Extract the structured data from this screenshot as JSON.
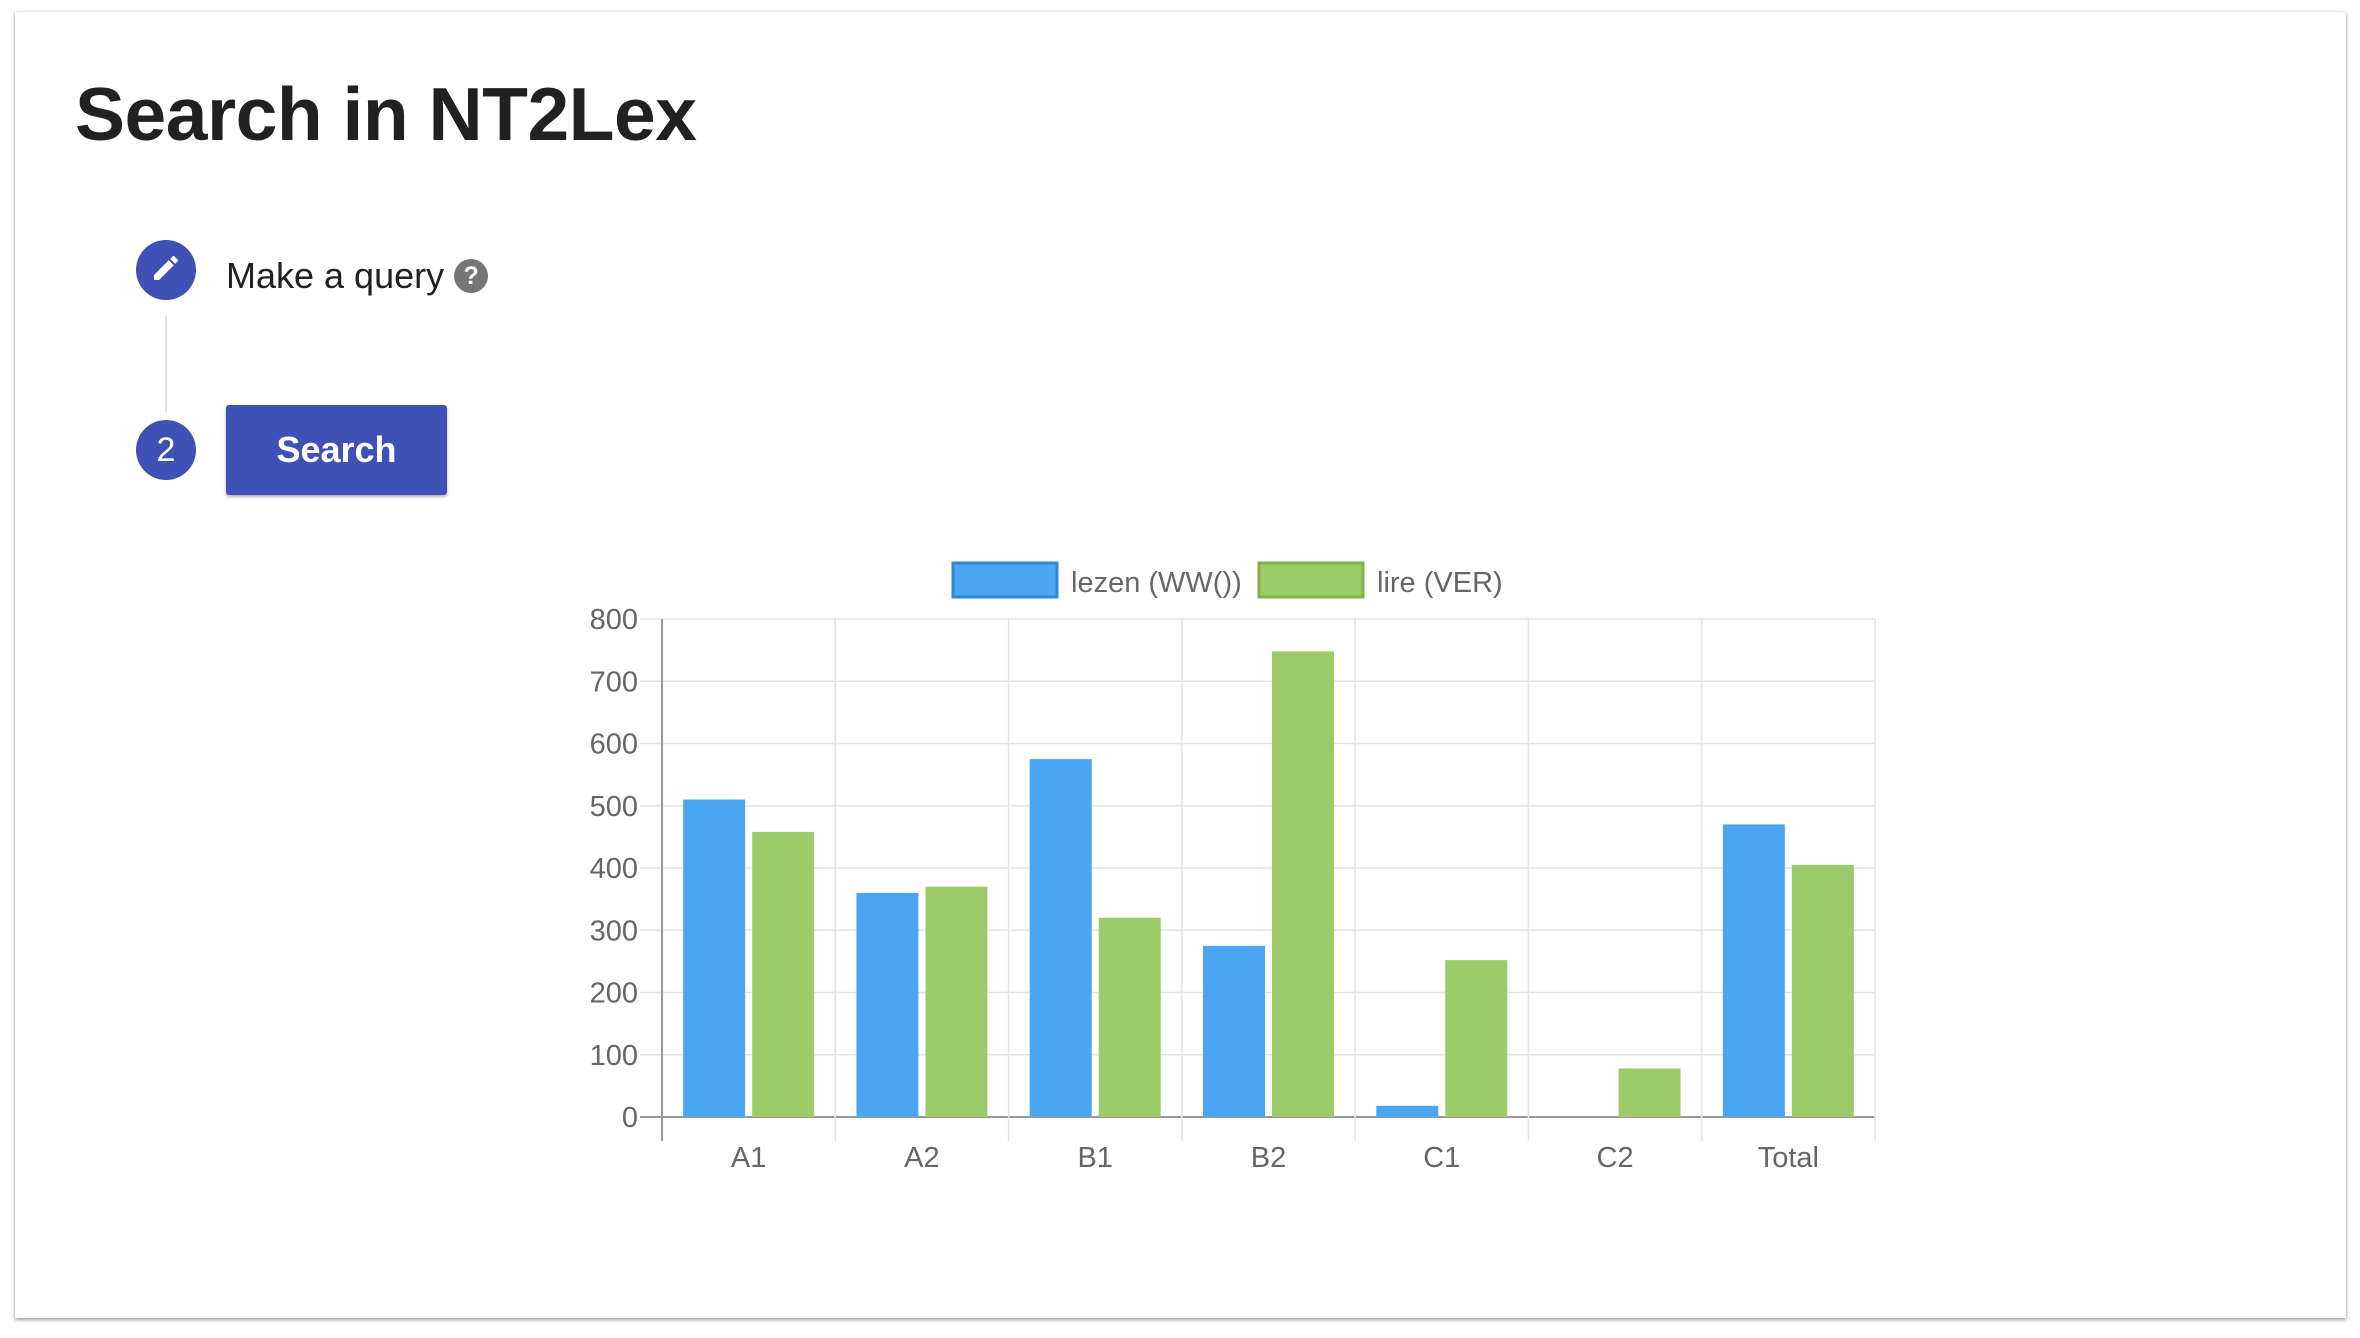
{
  "page": {
    "title": "Search in NT2Lex"
  },
  "steps": {
    "step1": {
      "label": "Make a query",
      "icon": "pencil-icon",
      "help_icon": "question-circle-icon"
    },
    "step2": {
      "number": "2",
      "button_label": "Search"
    }
  },
  "colors": {
    "primary": "#3f51b5",
    "series_lezen": "#4aa6f3",
    "series_lire": "#9ecb69"
  },
  "chart_data": {
    "type": "bar",
    "categories": [
      "A1",
      "A2",
      "B1",
      "B2",
      "C1",
      "C2",
      "Total"
    ],
    "series": [
      {
        "name": "lezen (WW())",
        "values": [
          510,
          360,
          575,
          275,
          18,
          0,
          470
        ]
      },
      {
        "name": "lire (VER)",
        "values": [
          458,
          370,
          320,
          748,
          252,
          78,
          405
        ]
      }
    ],
    "ylim": [
      0,
      800
    ],
    "yticks": [
      0,
      100,
      200,
      300,
      400,
      500,
      600,
      700,
      800
    ],
    "grid": true,
    "legend_position": "top"
  }
}
